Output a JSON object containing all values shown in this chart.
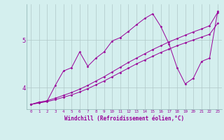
{
  "xlabel": "Windchill (Refroidissement éolien,°C)",
  "background_color": "#d4efee",
  "line_color": "#990099",
  "grid_color": "#b0c8c8",
  "x_ticks": [
    0,
    1,
    2,
    3,
    4,
    5,
    6,
    7,
    8,
    9,
    10,
    11,
    12,
    13,
    14,
    15,
    16,
    17,
    18,
    19,
    20,
    21,
    22,
    23
  ],
  "y_ticks": [
    4,
    5
  ],
  "xlim": [
    -0.5,
    23.5
  ],
  "ylim": [
    3.55,
    5.75
  ],
  "series_smooth1": [
    3.65,
    3.69,
    3.73,
    3.78,
    3.84,
    3.9,
    3.97,
    4.05,
    4.14,
    4.23,
    4.33,
    4.43,
    4.53,
    4.62,
    4.71,
    4.8,
    4.88,
    4.96,
    5.03,
    5.1,
    5.17,
    5.23,
    5.3,
    5.58
  ],
  "series_smooth2": [
    3.65,
    3.68,
    3.71,
    3.75,
    3.8,
    3.85,
    3.91,
    3.98,
    4.06,
    4.14,
    4.23,
    4.32,
    4.41,
    4.5,
    4.58,
    4.66,
    4.74,
    4.81,
    4.88,
    4.94,
    5.0,
    5.06,
    5.12,
    5.35
  ],
  "series_jagged": [
    3.65,
    3.7,
    3.72,
    4.05,
    4.35,
    4.42,
    4.75,
    4.45,
    4.62,
    4.75,
    4.98,
    5.05,
    5.18,
    5.32,
    5.45,
    5.55,
    5.28,
    4.92,
    4.42,
    4.08,
    4.2,
    4.55,
    4.62,
    5.6
  ]
}
